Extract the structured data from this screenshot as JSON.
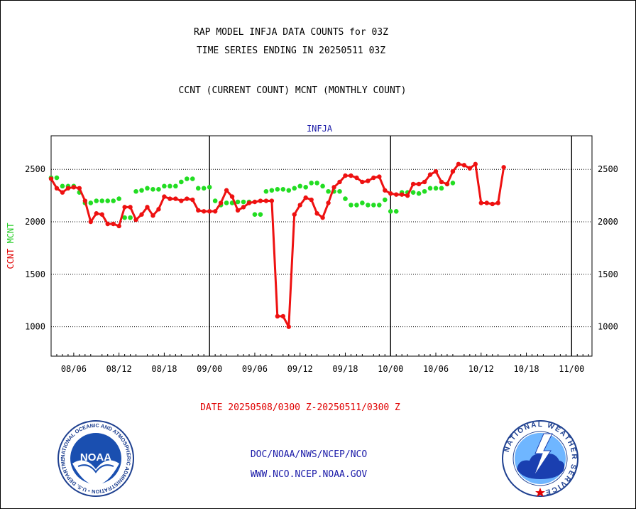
{
  "header": {
    "title1": "RAP MODEL INFJA DATA COUNTS for 03Z",
    "title2": "TIME SERIES ENDING IN 20250511 03Z",
    "subtitle": "CCNT (CURRENT COUNT) MCNT (MONTHLY COUNT)"
  },
  "footer": {
    "date_range": "DATE 20250508/0300 Z-20250511/0300 Z",
    "org": "DOC/NOAA/NWS/NCEP/NCO",
    "url": "WWW.NCO.NCEP.NOAA.GOV"
  },
  "logos": {
    "noaa_text": "NOAA",
    "noaa_ring": "NATIONAL OCEANIC AND ATMOSPHERIC ADMINISTRATION • U.S. DEPARTMENT OF COMMERCE •",
    "nws_ring": "NATIONAL WEATHER SERVICE"
  },
  "colors": {
    "ccnt": "#ee1111",
    "mcnt": "#22dd22",
    "plot_label": "#1a1aa8",
    "date_text": "#e00000"
  },
  "chart_data": {
    "type": "line",
    "title": "INFJA",
    "ylabel": "CCNT  MCNT",
    "ylim": [
      720,
      2820
    ],
    "yticks": [
      1000,
      1500,
      2000,
      2500
    ],
    "xlim": [
      0,
      95.6
    ],
    "x_tick_labels": [
      {
        "x": 4,
        "label": "08/06"
      },
      {
        "x": 12,
        "label": "08/12"
      },
      {
        "x": 20,
        "label": "08/18"
      },
      {
        "x": 28,
        "label": "09/00"
      },
      {
        "x": 36,
        "label": "09/06"
      },
      {
        "x": 44,
        "label": "09/12"
      },
      {
        "x": 52,
        "label": "09/18"
      },
      {
        "x": 60,
        "label": "10/00"
      },
      {
        "x": 68,
        "label": "10/06"
      },
      {
        "x": 76,
        "label": "10/12"
      },
      {
        "x": 84,
        "label": "10/18"
      },
      {
        "x": 92,
        "label": "11/00"
      }
    ],
    "day_boundaries": [
      28,
      60,
      92
    ],
    "grid": "horizontal dotted",
    "series": [
      {
        "name": "CCNT",
        "style": "line-with-dots",
        "values": [
          [
            0,
            2410
          ],
          [
            1,
            2320
          ],
          [
            2,
            2280
          ],
          [
            3,
            2320
          ],
          [
            4,
            2330
          ],
          [
            5,
            2320
          ],
          [
            6,
            2200
          ],
          [
            7,
            2000
          ],
          [
            8,
            2080
          ],
          [
            9,
            2070
          ],
          [
            10,
            1980
          ],
          [
            11,
            1980
          ],
          [
            12,
            1960
          ],
          [
            13,
            2140
          ],
          [
            14,
            2140
          ],
          [
            15,
            2020
          ],
          [
            16,
            2070
          ],
          [
            17,
            2140
          ],
          [
            18,
            2060
          ],
          [
            19,
            2120
          ],
          [
            20,
            2240
          ],
          [
            21,
            2220
          ],
          [
            22,
            2220
          ],
          [
            23,
            2200
          ],
          [
            24,
            2220
          ],
          [
            25,
            2210
          ],
          [
            26,
            2110
          ],
          [
            27,
            2100
          ],
          [
            28,
            2100
          ],
          [
            29,
            2100
          ],
          [
            30,
            2180
          ],
          [
            31,
            2300
          ],
          [
            32,
            2240
          ],
          [
            33,
            2110
          ],
          [
            34,
            2140
          ],
          [
            35,
            2180
          ],
          [
            36,
            2190
          ],
          [
            37,
            2200
          ],
          [
            38,
            2200
          ],
          [
            39,
            2200
          ],
          [
            40,
            1100
          ],
          [
            41,
            1100
          ],
          [
            42,
            1000
          ],
          [
            43,
            2070
          ],
          [
            44,
            2160
          ],
          [
            45,
            2230
          ],
          [
            46,
            2210
          ],
          [
            47,
            2080
          ],
          [
            48,
            2040
          ],
          [
            49,
            2180
          ],
          [
            50,
            2330
          ],
          [
            51,
            2380
          ],
          [
            52,
            2440
          ],
          [
            53,
            2440
          ],
          [
            54,
            2420
          ],
          [
            55,
            2380
          ],
          [
            56,
            2390
          ],
          [
            57,
            2420
          ],
          [
            58,
            2430
          ],
          [
            59,
            2300
          ],
          [
            60,
            2270
          ],
          [
            61,
            2260
          ],
          [
            62,
            2260
          ],
          [
            63,
            2250
          ],
          [
            64,
            2360
          ],
          [
            65,
            2360
          ],
          [
            66,
            2380
          ],
          [
            67,
            2450
          ],
          [
            68,
            2480
          ],
          [
            69,
            2380
          ],
          [
            70,
            2360
          ],
          [
            71,
            2480
          ],
          [
            72,
            2550
          ],
          [
            73,
            2540
          ],
          [
            74,
            2510
          ],
          [
            75,
            2550
          ],
          [
            76,
            2180
          ],
          [
            77,
            2180
          ],
          [
            78,
            2170
          ],
          [
            79,
            2180
          ],
          [
            80,
            2520
          ]
        ]
      },
      {
        "name": "MCNT",
        "style": "dotted",
        "values": [
          [
            0,
            2420
          ],
          [
            1,
            2420
          ],
          [
            2,
            2340
          ],
          [
            3,
            2340
          ],
          [
            4,
            2340
          ],
          [
            5,
            2280
          ],
          [
            6,
            2180
          ],
          [
            7,
            2180
          ],
          [
            8,
            2200
          ],
          [
            9,
            2200
          ],
          [
            10,
            2200
          ],
          [
            11,
            2200
          ],
          [
            12,
            2220
          ],
          [
            13,
            2040
          ],
          [
            14,
            2040
          ],
          [
            15,
            2290
          ],
          [
            16,
            2300
          ],
          [
            17,
            2320
          ],
          [
            18,
            2310
          ],
          [
            19,
            2310
          ],
          [
            20,
            2340
          ],
          [
            21,
            2340
          ],
          [
            22,
            2340
          ],
          [
            23,
            2380
          ],
          [
            24,
            2410
          ],
          [
            25,
            2410
          ],
          [
            26,
            2320
          ],
          [
            27,
            2320
          ],
          [
            28,
            2330
          ],
          [
            29,
            2200
          ],
          [
            30,
            2160
          ],
          [
            31,
            2180
          ],
          [
            32,
            2180
          ],
          [
            33,
            2190
          ],
          [
            34,
            2190
          ],
          [
            35,
            2190
          ],
          [
            36,
            2070
          ],
          [
            37,
            2070
          ],
          [
            38,
            2290
          ],
          [
            39,
            2300
          ],
          [
            40,
            2310
          ],
          [
            41,
            2310
          ],
          [
            42,
            2300
          ],
          [
            43,
            2320
          ],
          [
            44,
            2340
          ],
          [
            45,
            2330
          ],
          [
            46,
            2370
          ],
          [
            47,
            2370
          ],
          [
            48,
            2340
          ],
          [
            49,
            2290
          ],
          [
            50,
            2290
          ],
          [
            51,
            2290
          ],
          [
            52,
            2220
          ],
          [
            53,
            2160
          ],
          [
            54,
            2160
          ],
          [
            55,
            2180
          ],
          [
            56,
            2160
          ],
          [
            57,
            2160
          ],
          [
            58,
            2160
          ],
          [
            59,
            2210
          ],
          [
            60,
            2100
          ],
          [
            61,
            2100
          ],
          [
            62,
            2280
          ],
          [
            63,
            2280
          ],
          [
            64,
            2280
          ],
          [
            65,
            2270
          ],
          [
            66,
            2290
          ],
          [
            67,
            2320
          ],
          [
            68,
            2320
          ],
          [
            69,
            2320
          ],
          [
            70,
            2360
          ],
          [
            71,
            2370
          ]
        ]
      }
    ]
  }
}
